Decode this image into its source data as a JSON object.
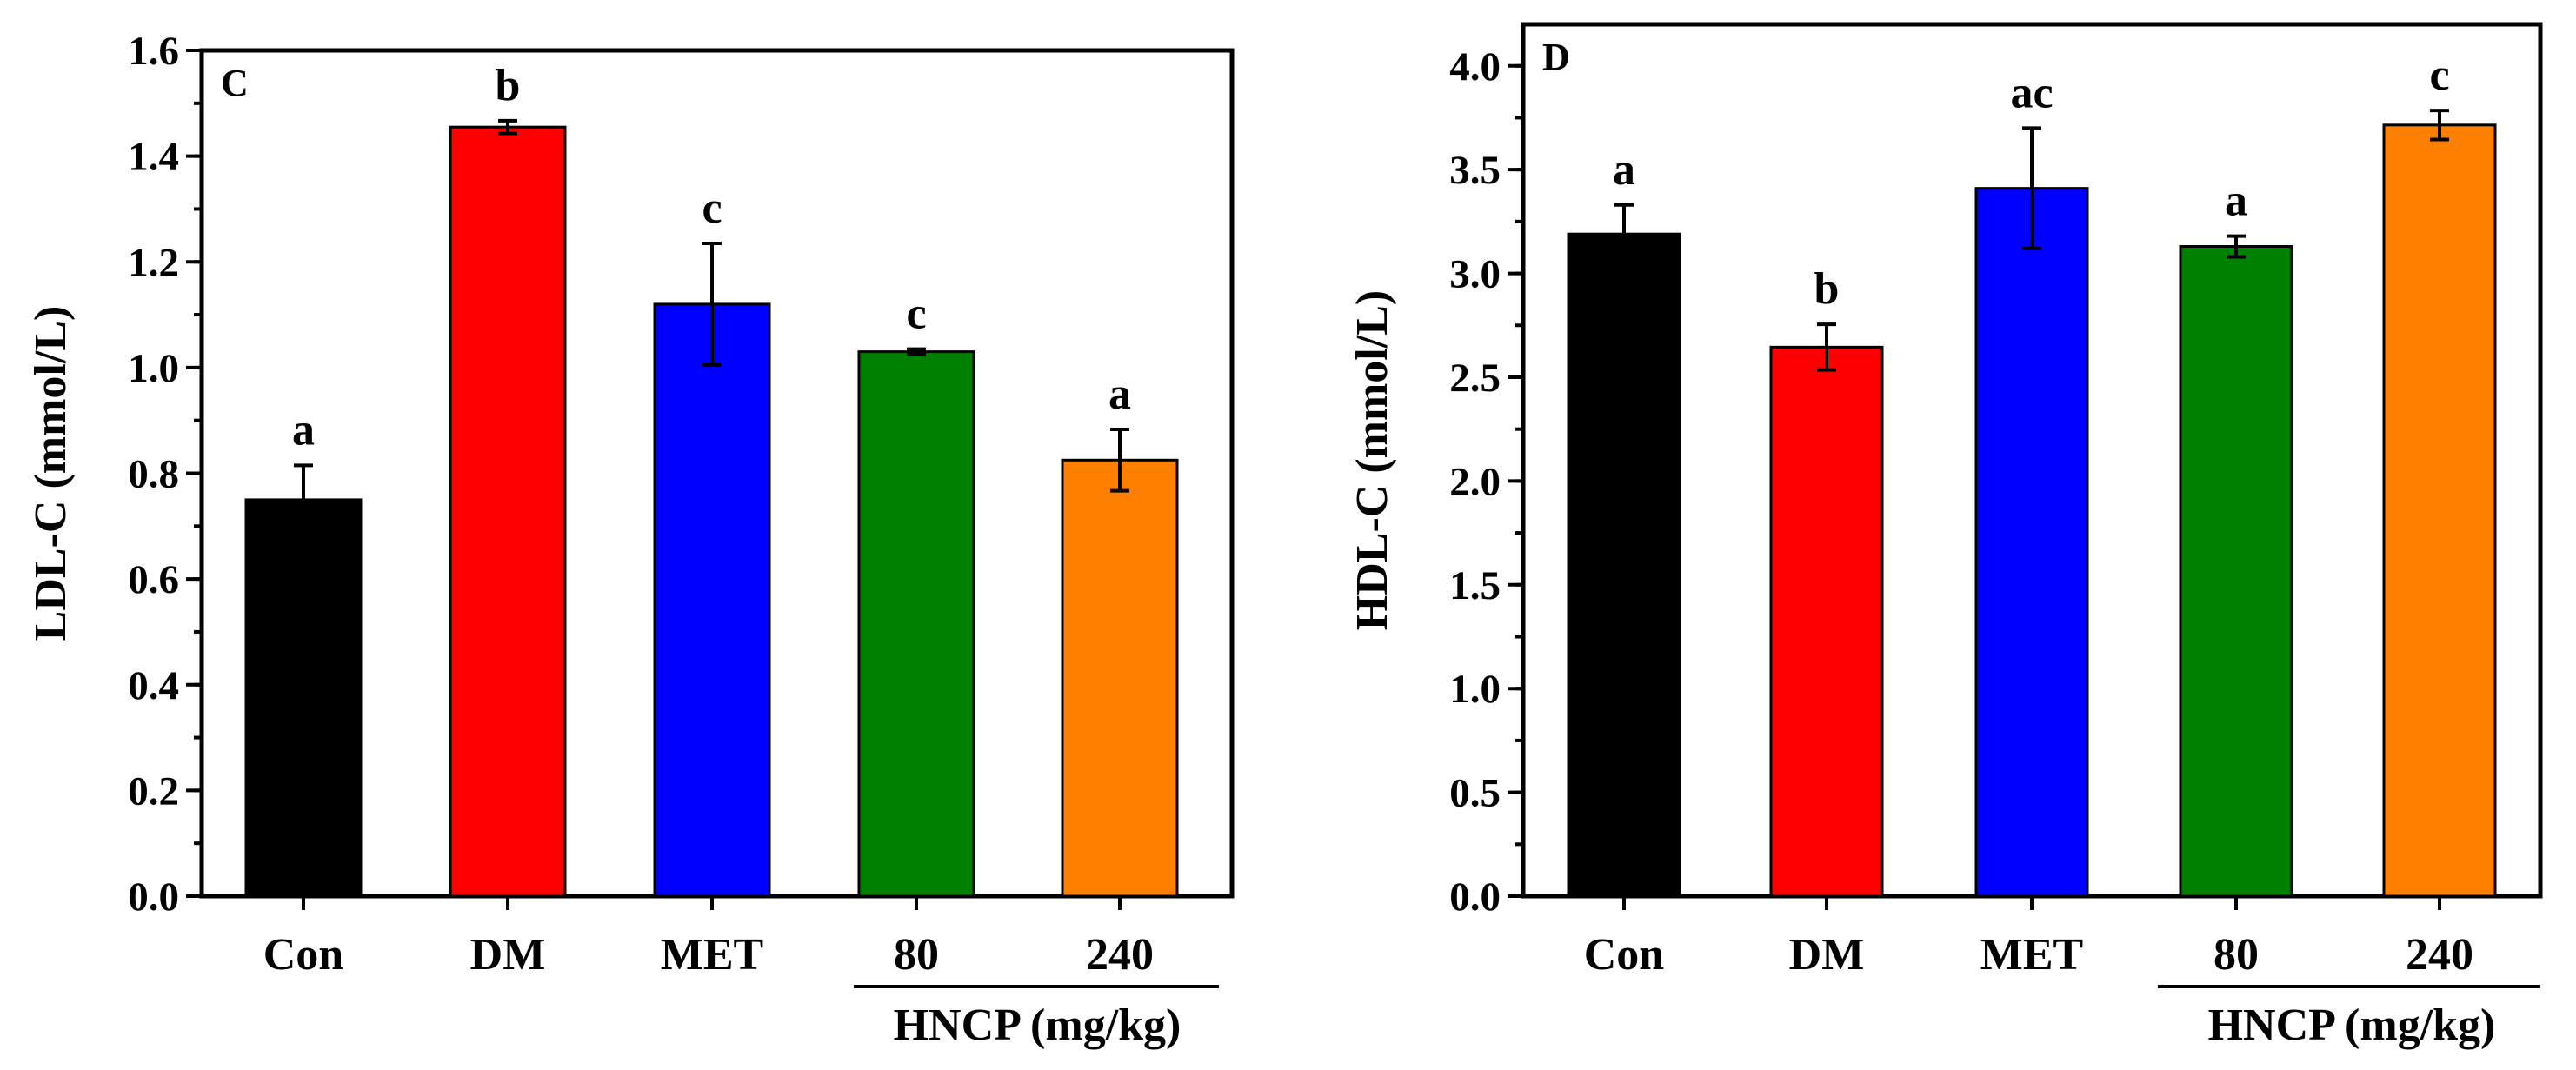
{
  "chart_data": [
    {
      "type": "bar",
      "panel": "C",
      "ylabel": "LDL-C (mmol/L)",
      "xlabel": "",
      "ylim": [
        0,
        1.6
      ],
      "yticks": [
        "0.0",
        "0.2",
        "0.4",
        "0.6",
        "0.8",
        "1.0",
        "1.2",
        "1.4",
        "1.6"
      ],
      "categories": [
        "Con",
        "DM",
        "MET",
        "80",
        "240"
      ],
      "values": [
        0.75,
        1.455,
        1.12,
        1.03,
        0.825
      ],
      "errors": [
        0.065,
        0.012,
        0.115,
        0.005,
        0.058
      ],
      "significance": [
        "a",
        "b",
        "c",
        "c",
        "a"
      ],
      "colors": [
        "#000000",
        "#ff0000",
        "#0000ff",
        "#008000",
        "#ff8000"
      ],
      "group_label": "HNCP (mg/kg)"
    },
    {
      "type": "bar",
      "panel": "D",
      "ylabel": "HDL-C (mmol/L)",
      "xlabel": "",
      "ylim": [
        0,
        4.2
      ],
      "yticks": [
        "0.0",
        "0.5",
        "1.0",
        "1.5",
        "2.0",
        "2.5",
        "3.0",
        "3.5",
        "4.0"
      ],
      "categories": [
        "Con",
        "DM",
        "MET",
        "80",
        "240"
      ],
      "values": [
        3.19,
        2.645,
        3.41,
        3.13,
        3.715
      ],
      "errors": [
        0.14,
        0.11,
        0.29,
        0.05,
        0.07
      ],
      "significance": [
        "a",
        "b",
        "ac",
        "a",
        "c"
      ],
      "colors": [
        "#000000",
        "#ff0000",
        "#0000ff",
        "#008000",
        "#ff8000"
      ],
      "group_label": "HNCP (mg/kg)"
    }
  ]
}
